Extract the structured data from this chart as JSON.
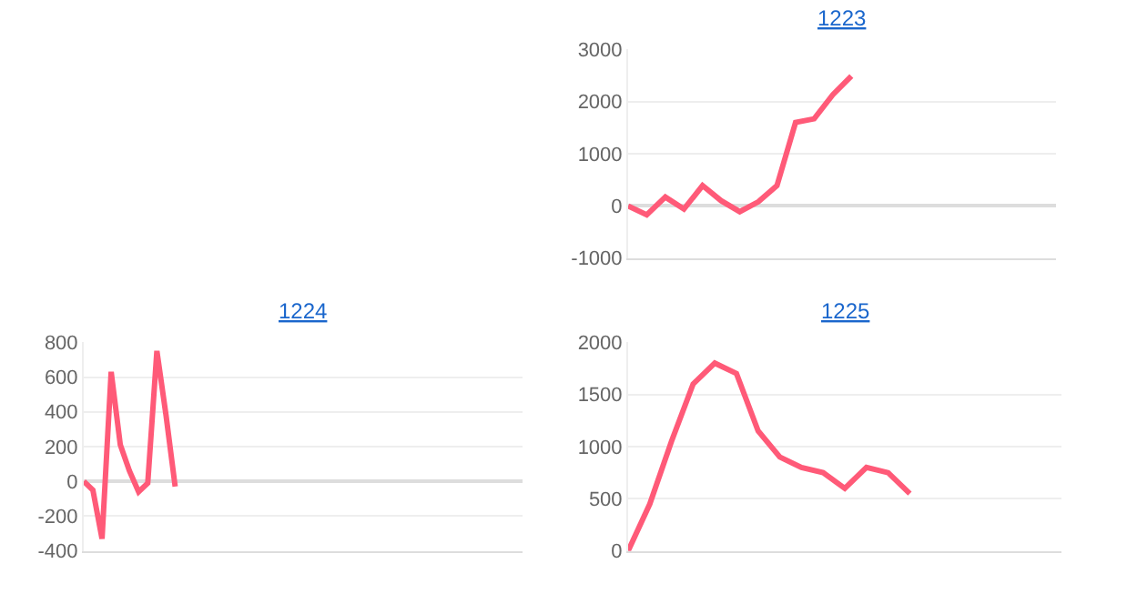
{
  "chart_data": [
    {
      "type": "line",
      "title": "1223",
      "categories": [
        null,
        null,
        null,
        null,
        null,
        null,
        null,
        null,
        null,
        null,
        null,
        null,
        null,
        null,
        null,
        null,
        null,
        null,
        null,
        null,
        null,
        null,
        null,
        null
      ],
      "series": [
        {
          "color": "#ff5a78",
          "values": [
            0,
            -170,
            170,
            -60,
            390,
            100,
            -110,
            80,
            390,
            1600,
            1670,
            2130,
            2490,
            null,
            null,
            null,
            null,
            null,
            null,
            null,
            null,
            null,
            null,
            null
          ]
        }
      ],
      "ylim": [
        -1000,
        3000
      ],
      "yticks": [
        -1000,
        0,
        1000,
        2000,
        3000
      ],
      "grid": "y",
      "marker": "none",
      "line_style": "solid"
    },
    {
      "type": "line",
      "title": "1224",
      "categories": [
        null,
        null,
        null,
        null,
        null,
        null,
        null,
        null,
        null,
        null,
        null,
        null,
        null,
        null,
        null,
        null,
        null,
        null,
        null,
        null,
        null,
        null,
        null,
        null,
        null,
        null,
        null,
        null,
        null,
        null,
        null,
        null,
        null,
        null,
        null,
        null,
        null,
        null,
        null,
        null,
        null,
        null,
        null,
        null,
        null,
        null,
        null,
        null,
        null
      ],
      "series": [
        {
          "color": "#ff5a78",
          "values": [
            0,
            -50,
            -330,
            630,
            210,
            60,
            -60,
            -10,
            750,
            380,
            -30,
            null,
            null,
            null,
            null,
            null,
            null,
            null,
            null,
            null,
            null,
            null,
            null,
            null,
            null,
            null,
            null,
            null,
            null,
            null,
            null,
            null,
            null,
            null,
            null,
            null,
            null,
            null,
            null,
            null,
            null,
            null,
            null,
            null,
            null,
            null,
            null,
            null,
            null
          ]
        }
      ],
      "ylim": [
        -400,
        800
      ],
      "yticks": [
        -400,
        -200,
        0,
        200,
        400,
        600,
        800
      ],
      "grid": "y",
      "marker": "none",
      "line_style": "solid"
    },
    {
      "type": "line",
      "title": "1225",
      "categories": [
        null,
        null,
        null,
        null,
        null,
        null,
        null,
        null,
        null,
        null,
        null,
        null,
        null,
        null,
        null,
        null,
        null,
        null,
        null,
        null,
        null
      ],
      "series": [
        {
          "color": "#ff5a78",
          "values": [
            0,
            450,
            1050,
            1600,
            1800,
            1700,
            1150,
            900,
            800,
            750,
            600,
            800,
            750,
            550,
            null,
            null,
            null,
            null,
            null,
            null,
            null
          ]
        }
      ],
      "ylim": [
        0,
        2000
      ],
      "yticks": [
        0,
        500,
        1000,
        1500,
        2000
      ],
      "grid": "y",
      "marker": "none",
      "line_style": "solid"
    }
  ]
}
